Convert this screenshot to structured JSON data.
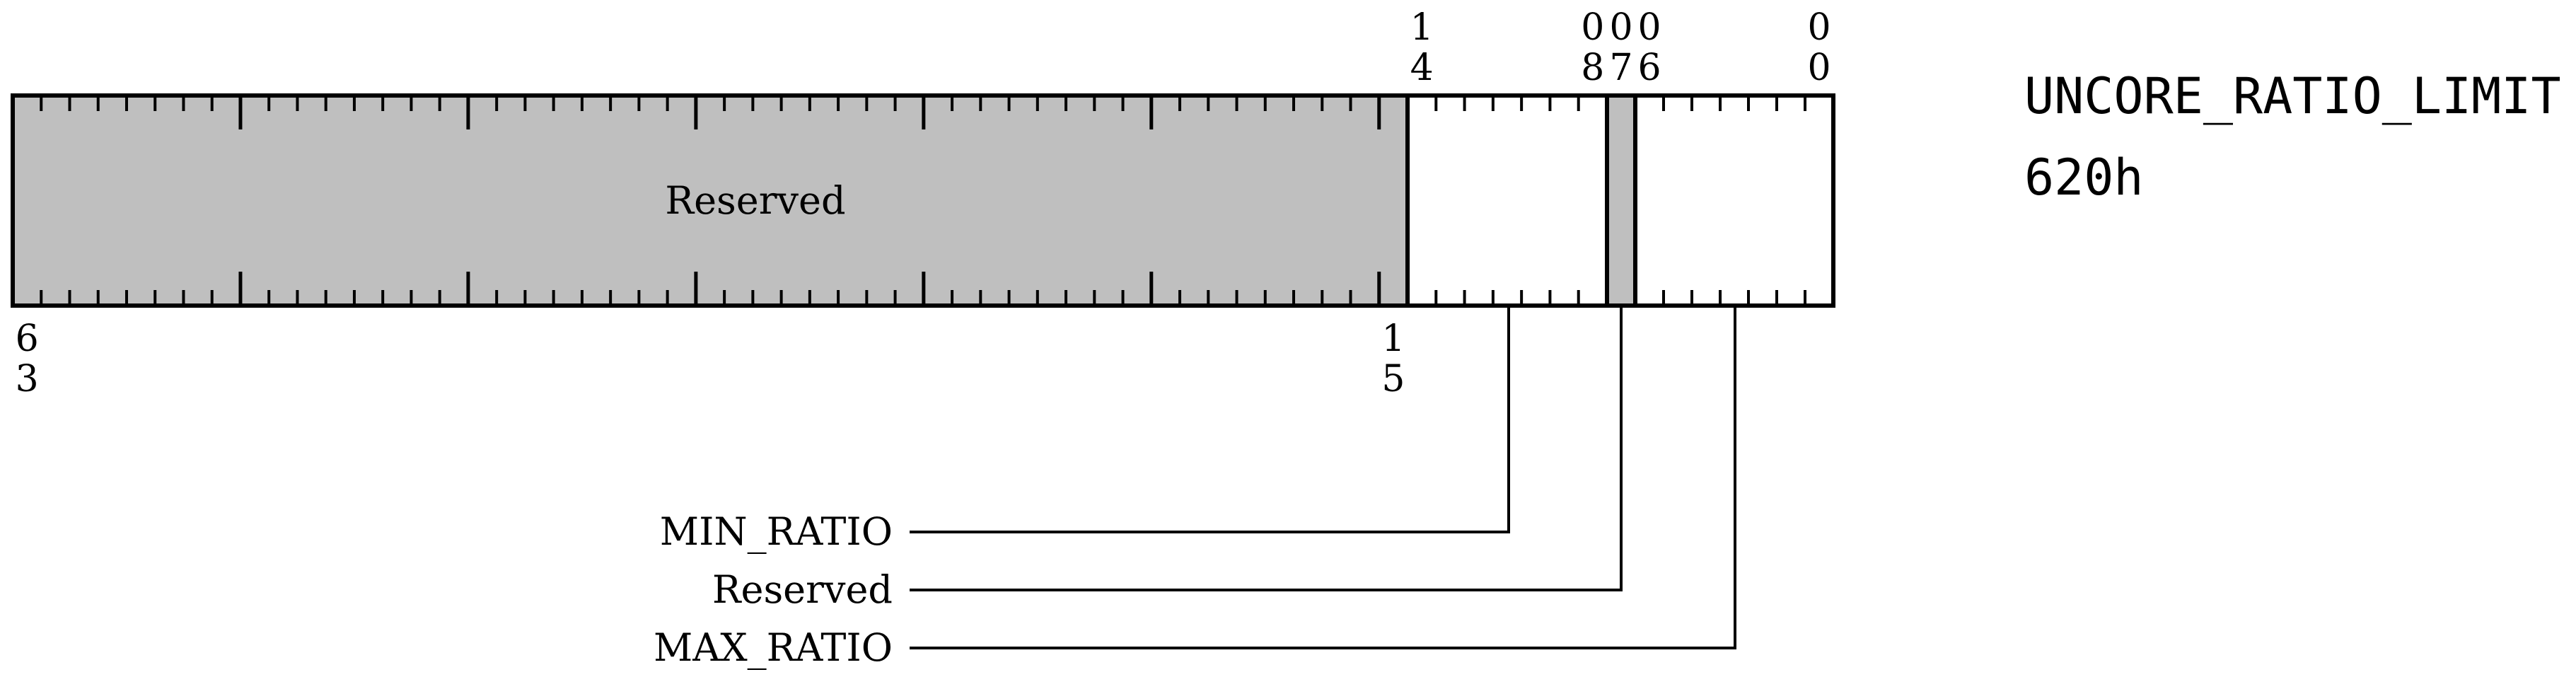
{
  "register": {
    "name": "UNCORE_RATIO_LIMIT",
    "address": "620h"
  },
  "colors": {
    "reserved_fill": "#bfbfbf",
    "field_fill": "#ffffff",
    "line": "#000000"
  },
  "bit_range": {
    "high": 63,
    "low": 0
  },
  "fields": [
    {
      "name": "Reserved",
      "msb": 63,
      "lsb": 15,
      "reserved": true,
      "label_inside": "Reserved"
    },
    {
      "name": "MIN_RATIO",
      "msb": 14,
      "lsb": 8,
      "reserved": false
    },
    {
      "name": "Reserved",
      "msb": 7,
      "lsb": 7,
      "reserved": true
    },
    {
      "name": "MAX_RATIO",
      "msb": 6,
      "lsb": 0,
      "reserved": false
    }
  ],
  "top_bit_labels": [
    {
      "bit": 14,
      "digits": [
        "1",
        "4"
      ]
    },
    {
      "bit": 8,
      "digits": [
        "0",
        "8"
      ]
    },
    {
      "bit": 7,
      "digits": [
        "0",
        "7"
      ]
    },
    {
      "bit": 6,
      "digits": [
        "0",
        "6"
      ]
    },
    {
      "bit": 0,
      "digits": [
        "0",
        "0"
      ]
    }
  ],
  "bottom_bit_labels": [
    {
      "bit": 63,
      "digits": [
        "6",
        "3"
      ]
    },
    {
      "bit": 15,
      "digits": [
        "1",
        "5"
      ]
    }
  ],
  "callouts": [
    {
      "label": "MIN_RATIO",
      "field_index": 1
    },
    {
      "label": "Reserved",
      "field_index": 2
    },
    {
      "label": "MAX_RATIO",
      "field_index": 3
    }
  ]
}
